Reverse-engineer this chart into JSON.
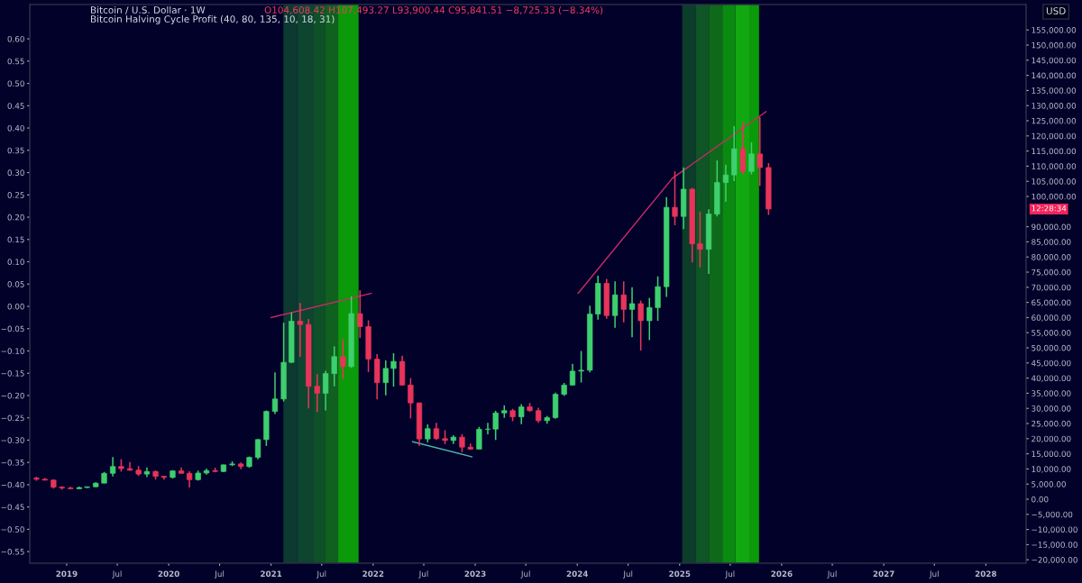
{
  "chart_data": {
    "type": "candlestick",
    "title": "Bitcoin / U.S. Dollar · 1W",
    "subtitle": "Bitcoin Halving Cycle Profit (40, 80, 135, 10, 18, 31)",
    "y2label": "USD",
    "annotations": [
      "O104,608.42 H107,493.27 L93,900.44 C95,841.51 −8,725.33 (−8.34%)",
      "12:28:34"
    ],
    "xlim": [
      "2018-08-22",
      "2028-05-24"
    ],
    "xticks": [
      {
        "value": "2019-01-01",
        "label": "2019"
      },
      {
        "value": "2019-07-01",
        "label": "Jul"
      },
      {
        "value": "2020-01-01",
        "label": "2020"
      },
      {
        "value": "2020-07-01",
        "label": "Jul"
      },
      {
        "value": "2021-01-01",
        "label": "2021"
      },
      {
        "value": "2021-07-01",
        "label": "Jul"
      },
      {
        "value": "2022-01-01",
        "label": "2022"
      },
      {
        "value": "2022-07-01",
        "label": "Jul"
      },
      {
        "value": "2023-01-01",
        "label": "2023"
      },
      {
        "value": "2023-07-01",
        "label": "Jul"
      },
      {
        "value": "2024-01-01",
        "label": "2024"
      },
      {
        "value": "2024-07-01",
        "label": "Jul"
      },
      {
        "value": "2025-01-01",
        "label": "2025"
      },
      {
        "value": "2025-07-01",
        "label": "Jul"
      },
      {
        "value": "2026-01-01",
        "label": "2026"
      },
      {
        "value": "2026-07-01",
        "label": "Jul"
      },
      {
        "value": "2027-01-01",
        "label": "2027"
      },
      {
        "value": "2027-07-01",
        "label": "Jul"
      },
      {
        "value": "2028-01-01",
        "label": "2028"
      }
    ],
    "ylim": [
      -0.576,
      0.677
    ],
    "yticks": [
      {
        "value": -0.55,
        "label": "−0.55"
      },
      {
        "value": -0.5,
        "label": "−0.50"
      },
      {
        "value": -0.45,
        "label": "−0.45"
      },
      {
        "value": -0.4,
        "label": "−0.40"
      },
      {
        "value": -0.35,
        "label": "−0.35"
      },
      {
        "value": -0.3,
        "label": "−0.30"
      },
      {
        "value": -0.25,
        "label": "−0.25"
      },
      {
        "value": -0.2,
        "label": "−0.20"
      },
      {
        "value": -0.15,
        "label": "−0.15"
      },
      {
        "value": -0.1,
        "label": "−0.10"
      },
      {
        "value": -0.05,
        "label": "−0.05"
      },
      {
        "value": 0,
        "label": "0.00"
      },
      {
        "value": 0.05,
        "label": "0.05"
      },
      {
        "value": 0.1,
        "label": "0.10"
      },
      {
        "value": 0.15,
        "label": "0.15"
      },
      {
        "value": 0.2,
        "label": "0.20"
      },
      {
        "value": 0.25,
        "label": "0.25"
      },
      {
        "value": 0.3,
        "label": "0.30"
      },
      {
        "value": 0.35,
        "label": "0.35"
      },
      {
        "value": 0.4,
        "label": "0.40"
      },
      {
        "value": 0.45,
        "label": "0.45"
      },
      {
        "value": 0.5,
        "label": "0.50"
      },
      {
        "value": 0.55,
        "label": "0.55"
      },
      {
        "value": 0.6,
        "label": "0.60"
      }
    ],
    "y2lim": [
      -21130,
      163400
    ],
    "y2ticks": [
      {
        "value": -20000,
        "label": "−20,000.00"
      },
      {
        "value": -15000,
        "label": "−15,000.00"
      },
      {
        "value": -10000,
        "label": "−10,000.00"
      },
      {
        "value": -5000,
        "label": "−5,000.00"
      },
      {
        "value": 0,
        "label": "0.00"
      },
      {
        "value": 5000,
        "label": "5,000.00"
      },
      {
        "value": 10000,
        "label": "10,000.00"
      },
      {
        "value": 15000,
        "label": "15,000.00"
      },
      {
        "value": 20000,
        "label": "20,000.00"
      },
      {
        "value": 25000,
        "label": "25,000.00"
      },
      {
        "value": 30000,
        "label": "30,000.00"
      },
      {
        "value": 35000,
        "label": "35,000.00"
      },
      {
        "value": 40000,
        "label": "40,000.00"
      },
      {
        "value": 45000,
        "label": "45,000.00"
      },
      {
        "value": 50000,
        "label": "50,000.00"
      },
      {
        "value": 55000,
        "label": "55,000.00"
      },
      {
        "value": 60000,
        "label": "60,000.00"
      },
      {
        "value": 65000,
        "label": "65,000.00"
      },
      {
        "value": 70000,
        "label": "70,000.00"
      },
      {
        "value": 75000,
        "label": "75,000.00"
      },
      {
        "value": 80000,
        "label": "80,000.00"
      },
      {
        "value": 85000,
        "label": "85,000.00"
      },
      {
        "value": 90000,
        "label": "90,000.00"
      },
      {
        "value": 100000,
        "label": "100,000.00"
      },
      {
        "value": 105000,
        "label": "105,000.00"
      },
      {
        "value": 110000,
        "label": "110,000.00"
      },
      {
        "value": 115000,
        "label": "115,000.00"
      },
      {
        "value": 120000,
        "label": "120,000.00"
      },
      {
        "value": 125000,
        "label": "125,000.00"
      },
      {
        "value": 130000,
        "label": "130,000.00"
      },
      {
        "value": 135000,
        "label": "135,000.00"
      },
      {
        "value": 140000,
        "label": "140,000.00"
      },
      {
        "value": 145000,
        "label": "145,000.00"
      },
      {
        "value": 150000,
        "label": "150,000.00"
      },
      {
        "value": 155000,
        "label": "155,000.00"
      }
    ],
    "bands": [
      {
        "axis": "x",
        "from": "2021-02-14",
        "to": "2021-04-05",
        "color": "#0c3a30"
      },
      {
        "axis": "x",
        "from": "2021-04-05",
        "to": "2021-05-31",
        "color": "#0d4530"
      },
      {
        "axis": "x",
        "from": "2021-05-31",
        "to": "2021-07-12",
        "color": "#0e5028"
      },
      {
        "axis": "x",
        "from": "2021-07-12",
        "to": "2021-08-29",
        "color": "#106020"
      },
      {
        "axis": "x",
        "from": "2021-08-29",
        "to": "2021-11-10",
        "color": "#0a9a0a"
      },
      {
        "axis": "x",
        "from": "2025-01-10",
        "to": "2025-02-27",
        "color": "#0c3d2a"
      },
      {
        "axis": "x",
        "from": "2025-02-27",
        "to": "2025-04-16",
        "color": "#0f5525"
      },
      {
        "axis": "x",
        "from": "2025-04-16",
        "to": "2025-06-03",
        "color": "#0e6a1a"
      },
      {
        "axis": "x",
        "from": "2025-06-03",
        "to": "2025-07-20",
        "color": "#0a8a10"
      },
      {
        "axis": "x",
        "from": "2025-07-20",
        "to": "2025-09-10",
        "color": "#11a811"
      },
      {
        "axis": "x",
        "from": "2025-09-10",
        "to": "2025-10-12",
        "color": "#0a9a0a"
      }
    ],
    "grid": false,
    "legend": false,
    "series": [
      {
        "axis": "y2",
        "x": [
          "2018-09-15",
          "2018-10-15",
          "2018-11-15",
          "2018-12-15",
          "2019-01-15",
          "2019-02-15",
          "2019-03-15",
          "2019-04-15",
          "2019-05-15",
          "2019-06-15",
          "2019-07-15",
          "2019-08-15",
          "2019-09-15",
          "2019-10-15",
          "2019-11-15",
          "2019-12-15",
          "2020-01-15",
          "2020-02-15",
          "2020-03-15",
          "2020-04-15",
          "2020-05-15",
          "2020-06-15",
          "2020-07-15",
          "2020-08-15",
          "2020-09-15",
          "2020-10-15",
          "2020-11-15",
          "2020-12-15",
          "2021-01-15",
          "2021-02-15",
          "2021-03-15",
          "2021-04-15",
          "2021-05-15",
          "2021-06-15",
          "2021-07-15",
          "2021-08-15",
          "2021-09-15",
          "2021-10-15",
          "2021-11-15",
          "2021-12-15",
          "2022-01-15",
          "2022-02-15",
          "2022-03-15",
          "2022-04-15",
          "2022-05-15",
          "2022-06-15",
          "2022-07-15",
          "2022-08-15",
          "2022-09-15",
          "2022-10-15",
          "2022-11-15",
          "2022-12-15",
          "2023-01-15",
          "2023-02-15",
          "2023-03-15",
          "2023-04-15",
          "2023-05-15",
          "2023-06-15",
          "2023-07-15",
          "2023-08-15",
          "2023-09-15",
          "2023-10-15",
          "2023-11-15",
          "2023-12-15",
          "2024-01-15",
          "2024-02-15",
          "2024-03-15",
          "2024-04-15",
          "2024-05-15",
          "2024-06-15",
          "2024-07-15",
          "2024-08-15",
          "2024-09-15",
          "2024-10-15",
          "2024-11-15",
          "2024-12-15",
          "2025-01-15",
          "2025-02-15",
          "2025-03-15",
          "2025-04-15",
          "2025-05-15",
          "2025-06-15",
          "2025-07-15",
          "2025-08-15",
          "2025-09-15",
          "2025-10-15",
          "2025-11-15"
        ],
        "ohlc": [
          [
            7000,
            7400,
            6100,
            6600
          ],
          [
            6600,
            7000,
            6200,
            6300
          ],
          [
            6300,
            6600,
            3500,
            4000
          ],
          [
            4000,
            4300,
            3150,
            3700
          ],
          [
            3700,
            4100,
            3350,
            3450
          ],
          [
            3450,
            4200,
            3400,
            3850
          ],
          [
            3850,
            4150,
            3700,
            4100
          ],
          [
            4100,
            5600,
            4050,
            5300
          ],
          [
            5300,
            9000,
            5300,
            8550
          ],
          [
            8550,
            13900,
            7500,
            10800
          ],
          [
            10800,
            13200,
            9100,
            10100
          ],
          [
            10100,
            12300,
            9400,
            9600
          ],
          [
            9600,
            10950,
            7700,
            8300
          ],
          [
            8300,
            10500,
            7300,
            9150
          ],
          [
            9150,
            9500,
            6500,
            7550
          ],
          [
            7550,
            7750,
            6450,
            7200
          ],
          [
            7200,
            9600,
            6850,
            9350
          ],
          [
            9350,
            10500,
            8450,
            8550
          ],
          [
            8550,
            9200,
            3850,
            6450
          ],
          [
            6450,
            9450,
            6150,
            8650
          ],
          [
            8650,
            10100,
            8100,
            9450
          ],
          [
            9450,
            10400,
            8900,
            9150
          ],
          [
            9150,
            11450,
            8950,
            11350
          ],
          [
            11350,
            12500,
            10950,
            11650
          ],
          [
            11650,
            12100,
            9900,
            10800
          ],
          [
            10800,
            14100,
            10400,
            13800
          ],
          [
            13800,
            19900,
            13200,
            19700
          ],
          [
            19700,
            29300,
            17600,
            29000
          ],
          [
            29000,
            41900,
            28100,
            33100
          ],
          [
            33100,
            58300,
            32300,
            45200
          ],
          [
            45200,
            61700,
            45000,
            58800
          ],
          [
            58800,
            64800,
            47000,
            57700
          ],
          [
            57700,
            59500,
            30000,
            37300
          ],
          [
            37300,
            41300,
            28800,
            35000
          ],
          [
            35000,
            42400,
            29300,
            41500
          ],
          [
            41500,
            50500,
            37300,
            47100
          ],
          [
            47100,
            52900,
            39600,
            43800
          ],
          [
            43800,
            67000,
            43300,
            61300
          ],
          [
            61300,
            69000,
            53300,
            57000
          ],
          [
            57000,
            59100,
            42000,
            46300
          ],
          [
            46300,
            47900,
            33000,
            38500
          ],
          [
            38500,
            45800,
            34300,
            43200
          ],
          [
            43200,
            48200,
            37200,
            45500
          ],
          [
            45500,
            47400,
            37600,
            37700
          ],
          [
            37700,
            40000,
            26700,
            31800
          ],
          [
            31800,
            31900,
            17600,
            19900
          ],
          [
            19900,
            24700,
            18800,
            23300
          ],
          [
            23300,
            25200,
            19600,
            20000
          ],
          [
            20000,
            22800,
            18200,
            19400
          ],
          [
            19400,
            21100,
            18200,
            20500
          ],
          [
            20500,
            21500,
            15500,
            17200
          ],
          [
            17200,
            18400,
            16300,
            16550
          ],
          [
            16550,
            23900,
            16500,
            23100
          ],
          [
            23100,
            25250,
            21400,
            23150
          ],
          [
            23150,
            29200,
            19550,
            28500
          ],
          [
            28500,
            31000,
            26900,
            29250
          ],
          [
            29250,
            29850,
            25800,
            27200
          ],
          [
            27200,
            31400,
            24800,
            30500
          ],
          [
            30500,
            31800,
            28900,
            29250
          ],
          [
            29250,
            30200,
            25200,
            25950
          ],
          [
            25950,
            27500,
            24900,
            26950
          ],
          [
            26950,
            35200,
            26550,
            34650
          ],
          [
            34650,
            38400,
            34100,
            37700
          ],
          [
            37700,
            44700,
            37600,
            42300
          ],
          [
            42300,
            48950,
            38550,
            42600
          ],
          [
            42600,
            63900,
            41900,
            61150
          ],
          [
            61150,
            73800,
            59300,
            71300
          ],
          [
            71300,
            72800,
            59600,
            60650
          ],
          [
            60650,
            71950,
            56600,
            67500
          ],
          [
            67500,
            71950,
            58400,
            62700
          ],
          [
            62700,
            70000,
            53500,
            64600
          ],
          [
            64600,
            65600,
            49100,
            58950
          ],
          [
            58950,
            66500,
            52550,
            63300
          ],
          [
            63300,
            73600,
            58900,
            70200
          ],
          [
            70200,
            99800,
            66800,
            96400
          ],
          [
            96400,
            108300,
            90500,
            93400
          ],
          [
            93400,
            109600,
            89200,
            102400
          ],
          [
            102400,
            102800,
            78200,
            84350
          ],
          [
            84350,
            95000,
            76600,
            82550
          ],
          [
            82550,
            95750,
            74400,
            94200
          ],
          [
            94200,
            111900,
            93400,
            104600
          ],
          [
            104600,
            110500,
            98200,
            107100
          ],
          [
            107100,
            123200,
            105100,
            115750
          ],
          [
            115750,
            124450,
            107300,
            108250
          ],
          [
            108250,
            117900,
            107300,
            114050
          ],
          [
            114050,
            126200,
            103500,
            109550
          ],
          [
            109550,
            111000,
            93900,
            95850
          ]
        ],
        "colors": [
          "#e8345a",
          "#e8345a",
          "#e8345a",
          "#e8345a",
          "#e8345a",
          "#3ecf6e",
          "#3ecf6e",
          "#3ecf6e",
          "#3ecf6e",
          "#3ecf6e",
          "#e8345a",
          "#e8345a",
          "#e8345a",
          "#3ecf6e",
          "#e8345a",
          "#e8345a",
          "#3ecf6e",
          "#e8345a",
          "#e8345a",
          "#3ecf6e",
          "#3ecf6e",
          "#e8345a",
          "#3ecf6e",
          "#3ecf6e",
          "#e8345a",
          "#3ecf6e",
          "#3ecf6e",
          "#3ecf6e",
          "#3ecf6e",
          "#3ecf6e",
          "#3ecf6e",
          "#e8345a",
          "#e8345a",
          "#e8345a",
          "#3ecf6e",
          "#3ecf6e",
          "#e8345a",
          "#3ecf6e",
          "#e8345a",
          "#e8345a",
          "#e8345a",
          "#3ecf6e",
          "#3ecf6e",
          "#e8345a",
          "#e8345a",
          "#e8345a",
          "#3ecf6e",
          "#e8345a",
          "#e8345a",
          "#3ecf6e",
          "#e8345a",
          "#e8345a",
          "#3ecf6e",
          "#3ecf6e",
          "#3ecf6e",
          "#3ecf6e",
          "#e8345a",
          "#3ecf6e",
          "#e8345a",
          "#e8345a",
          "#3ecf6e",
          "#3ecf6e",
          "#3ecf6e",
          "#3ecf6e",
          "#3ecf6e",
          "#3ecf6e",
          "#3ecf6e",
          "#e8345a",
          "#3ecf6e",
          "#e8345a",
          "#3ecf6e",
          "#e8345a",
          "#3ecf6e",
          "#3ecf6e",
          "#3ecf6e",
          "#e8345a",
          "#3ecf6e",
          "#e8345a",
          "#e8345a",
          "#3ecf6e",
          "#3ecf6e",
          "#3ecf6e",
          "#3ecf6e",
          "#e8345a",
          "#3ecf6e",
          "#e8345a",
          "#e8345a"
        ]
      },
      {
        "type": "line",
        "axis": "y2",
        "color": "#d02a6a",
        "x": [
          "2021-01-01",
          "2021-12-25"
        ],
        "values": [
          60000,
          68000
        ]
      },
      {
        "type": "line",
        "axis": "y2",
        "color": "#4db6ac",
        "x": [
          "2022-05-22",
          "2022-12-20"
        ],
        "values": [
          19000,
          14000
        ]
      },
      {
        "type": "line",
        "axis": "y2",
        "color": "#d02a6a",
        "x": [
          "2024-01-04",
          "2024-12-06",
          "2025-11-06"
        ],
        "values": [
          68000,
          106000,
          128000
        ]
      }
    ]
  }
}
